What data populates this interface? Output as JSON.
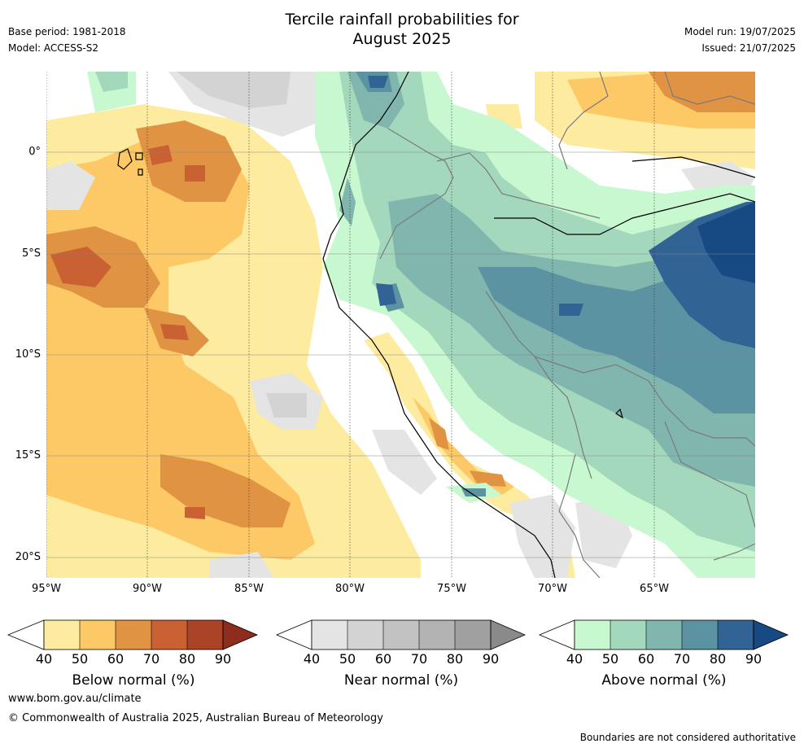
{
  "header": {
    "title_line1": "Tercile rainfall probabilities for",
    "title_line2": "August 2025",
    "base_period": "Base period: 1981-2018",
    "model": "Model: ACCESS-S2",
    "model_run": "Model run: 19/07/2025",
    "issued": "Issued: 21/07/2025"
  },
  "map": {
    "lat_ticks": [
      "0°",
      "5°S",
      "10°S",
      "15°S",
      "20°S"
    ],
    "lon_ticks": [
      "95°W",
      "90°W",
      "85°W",
      "80°W",
      "75°W",
      "70°W",
      "65°W"
    ],
    "lat_range": [
      -21,
      4
    ],
    "lon_range": [
      -95,
      -60
    ]
  },
  "legends": [
    {
      "title": "Below normal (%)",
      "ticks": [
        "40",
        "50",
        "60",
        "70",
        "80",
        "90"
      ],
      "colors": [
        "#fdeca0",
        "#fdc966",
        "#e09343",
        "#c96133",
        "#ab4427",
        "#8e2d1e"
      ]
    },
    {
      "title": "Near normal (%)",
      "ticks": [
        "40",
        "50",
        "60",
        "70",
        "80",
        "90"
      ],
      "colors": [
        "#e4e4e4",
        "#d3d3d3",
        "#c2c2c2",
        "#b3b3b3",
        "#a0a0a0",
        "#8a8a8a"
      ]
    },
    {
      "title": "Above normal (%)",
      "ticks": [
        "40",
        "50",
        "60",
        "70",
        "80",
        "90"
      ],
      "colors": [
        "#c8f8cf",
        "#a3d8bd",
        "#80b6ae",
        "#5c93a2",
        "#326395",
        "#174a82"
      ]
    }
  ],
  "footer": {
    "website": "www.bom.gov.au/climate",
    "copyright": "© Commonwealth of Australia 2025, Australian Bureau of Meteorology",
    "disclaimer": "Boundaries are not considered authoritative"
  }
}
